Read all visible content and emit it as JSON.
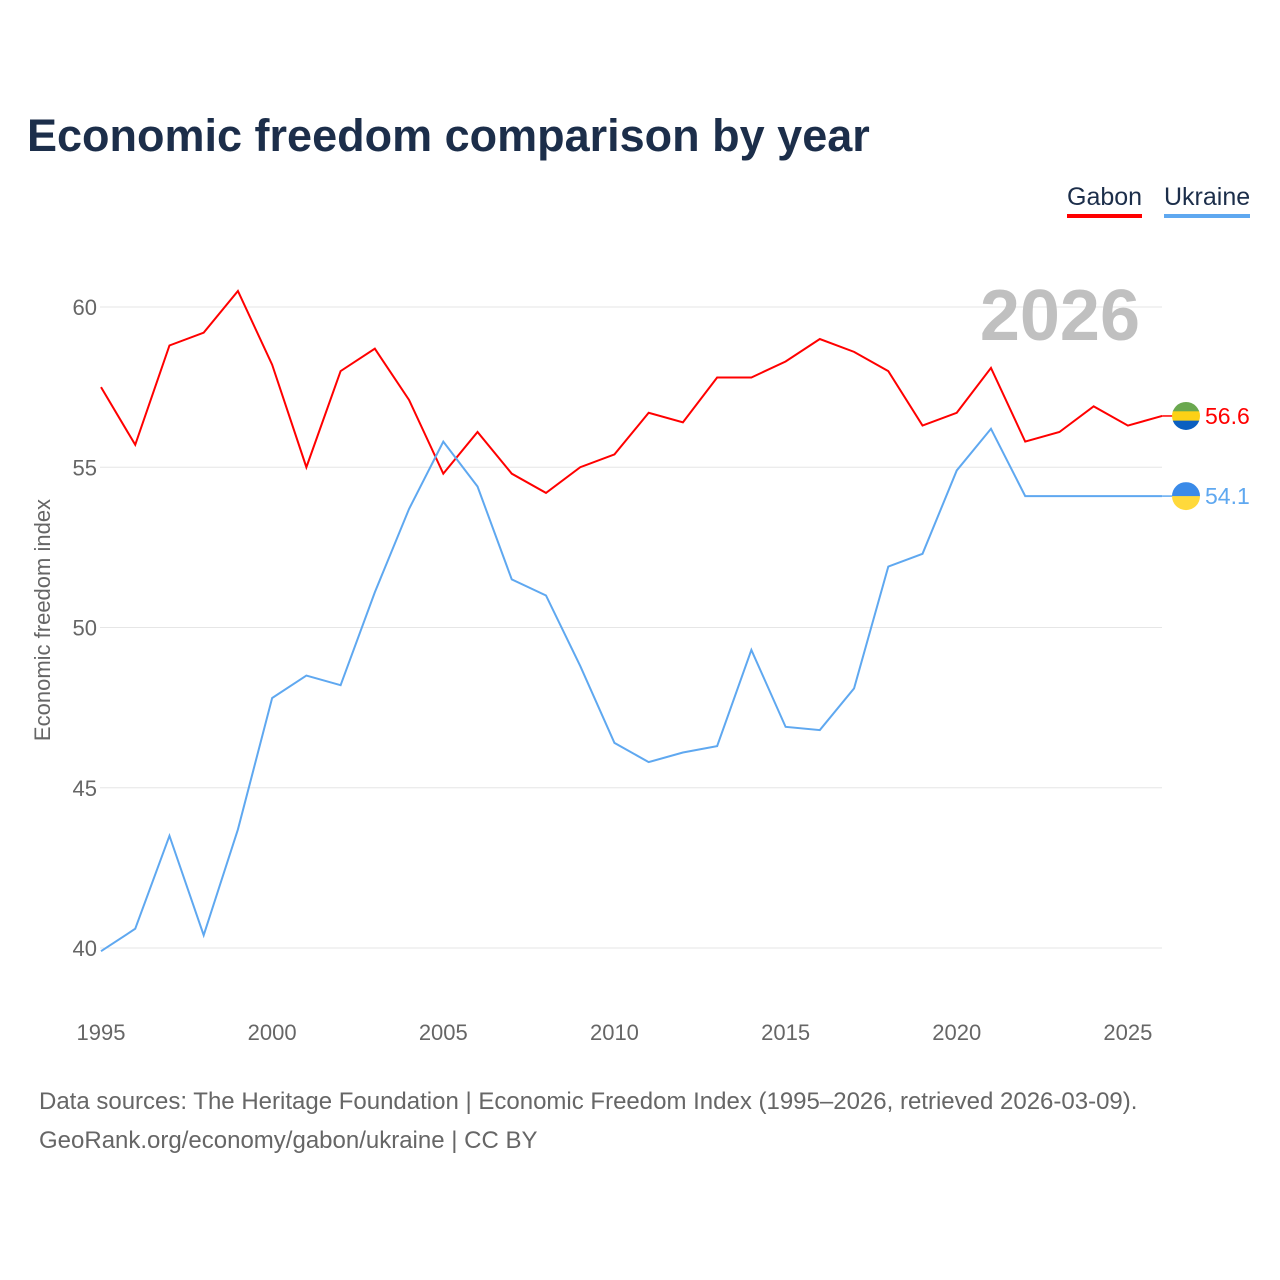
{
  "chart_data": {
    "type": "line",
    "title": "Economic freedom comparison by year",
    "xlabel": "",
    "ylabel": "Economic freedom index",
    "xlim": [
      1995,
      2026
    ],
    "ylim": [
      40,
      61
    ],
    "x_ticks": [
      "1995",
      "2000",
      "2005",
      "2010",
      "2015",
      "2020",
      "2025"
    ],
    "y_ticks": [
      "40",
      "45",
      "50",
      "55",
      "60"
    ],
    "grid": true,
    "legend_position": "top-right",
    "year_label": "2026",
    "x": [
      1995,
      1996,
      1997,
      1998,
      1999,
      2000,
      2001,
      2002,
      2003,
      2004,
      2005,
      2006,
      2007,
      2008,
      2009,
      2010,
      2011,
      2012,
      2013,
      2014,
      2015,
      2016,
      2017,
      2018,
      2019,
      2020,
      2021,
      2022,
      2023,
      2024,
      2025,
      2026
    ],
    "series": [
      {
        "name": "Gabon",
        "color": "#ff0000",
        "end_label": "56.6",
        "values": [
          57.5,
          55.7,
          58.8,
          59.2,
          60.5,
          58.2,
          55.0,
          58.0,
          58.7,
          57.1,
          54.8,
          56.1,
          54.8,
          54.2,
          55.0,
          55.4,
          56.7,
          56.4,
          57.8,
          57.8,
          58.3,
          59.0,
          58.6,
          58.0,
          56.3,
          56.7,
          58.1,
          55.8,
          56.1,
          56.9,
          56.3,
          56.6
        ]
      },
      {
        "name": "Ukraine",
        "color": "#5fa8f0",
        "end_label": "54.1",
        "values": [
          39.9,
          40.6,
          43.5,
          40.4,
          43.7,
          47.8,
          48.5,
          48.2,
          51.1,
          53.7,
          55.8,
          54.4,
          51.5,
          51.0,
          48.8,
          46.4,
          45.8,
          46.1,
          46.3,
          49.3,
          46.9,
          46.8,
          48.1,
          51.9,
          52.3,
          54.9,
          56.2,
          54.1,
          54.1,
          54.1,
          54.1,
          54.1
        ]
      }
    ]
  },
  "footer": {
    "line1": "Data sources: The Heritage Foundation | Economic Freedom Index (1995–2026, retrieved 2026-03-09).",
    "line2": "GeoRank.org/economy/gabon/ukraine | CC BY"
  }
}
